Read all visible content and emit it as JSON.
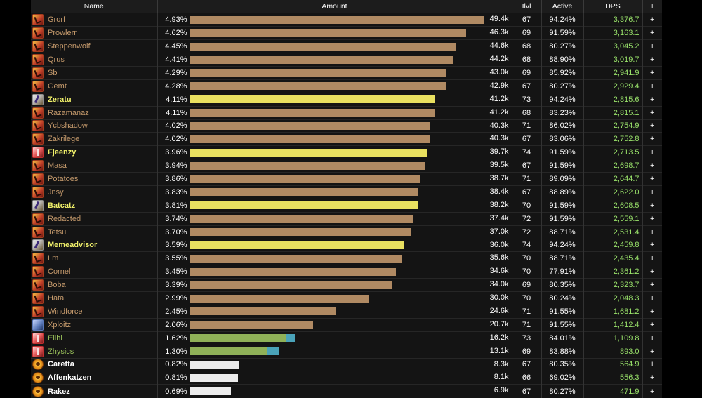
{
  "columns": {
    "name": "Name",
    "amount": "Amount",
    "ilvl": "Ilvl",
    "active": "Active",
    "dps": "DPS",
    "plus": "+"
  },
  "colors": {
    "warrior": "#c59a6c",
    "stormy": "#e8e86a",
    "monk": "#e8e86a",
    "frost": "#c59a6c",
    "hunter": "#9bc35b",
    "pet": "#4aa3b9",
    "fire": "#ffffff"
  },
  "max_amount": 49.4,
  "rows": [
    {
      "name": "Grorf",
      "icon": "warrior",
      "pct": "4.93%",
      "amount": "49.4k",
      "amount_value": 49.4,
      "ilvl": "67",
      "active": "94.24%",
      "dps": "3,376.7",
      "name_color": "#c59a6c",
      "bar_color": "#b08a63",
      "bold": false
    },
    {
      "name": "Prowlerr",
      "icon": "warrior",
      "pct": "4.62%",
      "amount": "46.3k",
      "amount_value": 46.3,
      "ilvl": "69",
      "active": "91.59%",
      "dps": "3,163.1",
      "name_color": "#c59a6c",
      "bar_color": "#b08a63",
      "bold": false
    },
    {
      "name": "Steppenwolf",
      "icon": "warrior",
      "pct": "4.45%",
      "amount": "44.6k",
      "amount_value": 44.6,
      "ilvl": "68",
      "active": "80.27%",
      "dps": "3,045.2",
      "name_color": "#c59a6c",
      "bar_color": "#b08a63",
      "bold": false
    },
    {
      "name": "Qrus",
      "icon": "warrior",
      "pct": "4.41%",
      "amount": "44.2k",
      "amount_value": 44.2,
      "ilvl": "68",
      "active": "88.90%",
      "dps": "3,019.7",
      "name_color": "#c59a6c",
      "bar_color": "#b08a63",
      "bold": false
    },
    {
      "name": "Sb",
      "icon": "warrior",
      "pct": "4.29%",
      "amount": "43.0k",
      "amount_value": 43.0,
      "ilvl": "69",
      "active": "85.92%",
      "dps": "2,941.9",
      "name_color": "#c59a6c",
      "bar_color": "#b08a63",
      "bold": false
    },
    {
      "name": "Gemt",
      "icon": "warrior",
      "pct": "4.28%",
      "amount": "42.9k",
      "amount_value": 42.9,
      "ilvl": "67",
      "active": "80.27%",
      "dps": "2,929.4",
      "name_color": "#c59a6c",
      "bar_color": "#b08a63",
      "bold": false
    },
    {
      "name": "Zeratu",
      "icon": "stormy",
      "pct": "4.11%",
      "amount": "41.2k",
      "amount_value": 41.2,
      "ilvl": "73",
      "active": "94.24%",
      "dps": "2,815.6",
      "name_color": "#f0f06a",
      "bar_color": "#e8e060",
      "bold": true
    },
    {
      "name": "Razamanaz",
      "icon": "warrior",
      "pct": "4.11%",
      "amount": "41.2k",
      "amount_value": 41.2,
      "ilvl": "68",
      "active": "83.23%",
      "dps": "2,815.1",
      "name_color": "#c59a6c",
      "bar_color": "#b08a63",
      "bold": false
    },
    {
      "name": "Ycbshadow",
      "icon": "warrior",
      "pct": "4.02%",
      "amount": "40.3k",
      "amount_value": 40.3,
      "ilvl": "71",
      "active": "86.02%",
      "dps": "2,754.9",
      "name_color": "#c59a6c",
      "bar_color": "#b08a63",
      "bold": false
    },
    {
      "name": "Zakrilege",
      "icon": "warrior",
      "pct": "4.02%",
      "amount": "40.3k",
      "amount_value": 40.3,
      "ilvl": "67",
      "active": "83.06%",
      "dps": "2,752.8",
      "name_color": "#c59a6c",
      "bar_color": "#b08a63",
      "bold": false
    },
    {
      "name": "Fjeenzy",
      "icon": "monk",
      "pct": "3.96%",
      "amount": "39.7k",
      "amount_value": 39.7,
      "ilvl": "74",
      "active": "91.59%",
      "dps": "2,713.5",
      "name_color": "#f0f06a",
      "bar_color": "#e8e060",
      "bold": true
    },
    {
      "name": "Masa",
      "icon": "warrior",
      "pct": "3.94%",
      "amount": "39.5k",
      "amount_value": 39.5,
      "ilvl": "67",
      "active": "91.59%",
      "dps": "2,698.7",
      "name_color": "#c59a6c",
      "bar_color": "#b08a63",
      "bold": false
    },
    {
      "name": "Potatoes",
      "icon": "warrior",
      "pct": "3.86%",
      "amount": "38.7k",
      "amount_value": 38.7,
      "ilvl": "71",
      "active": "89.09%",
      "dps": "2,644.7",
      "name_color": "#c59a6c",
      "bar_color": "#b08a63",
      "bold": false
    },
    {
      "name": "Jnsy",
      "icon": "warrior",
      "pct": "3.83%",
      "amount": "38.4k",
      "amount_value": 38.4,
      "ilvl": "67",
      "active": "88.89%",
      "dps": "2,622.0",
      "name_color": "#c59a6c",
      "bar_color": "#b08a63",
      "bold": false
    },
    {
      "name": "Batcatz",
      "icon": "stormy",
      "pct": "3.81%",
      "amount": "38.2k",
      "amount_value": 38.2,
      "ilvl": "70",
      "active": "91.59%",
      "dps": "2,608.5",
      "name_color": "#f0f06a",
      "bar_color": "#e8e060",
      "bold": true
    },
    {
      "name": "Redacted",
      "icon": "warrior",
      "pct": "3.74%",
      "amount": "37.4k",
      "amount_value": 37.4,
      "ilvl": "72",
      "active": "91.59%",
      "dps": "2,559.1",
      "name_color": "#c59a6c",
      "bar_color": "#b08a63",
      "bold": false
    },
    {
      "name": "Tetsu",
      "icon": "warrior",
      "pct": "3.70%",
      "amount": "37.0k",
      "amount_value": 37.0,
      "ilvl": "72",
      "active": "88.71%",
      "dps": "2,531.4",
      "name_color": "#c59a6c",
      "bar_color": "#b08a63",
      "bold": false
    },
    {
      "name": "Memeadvisor",
      "icon": "stormy",
      "pct": "3.59%",
      "amount": "36.0k",
      "amount_value": 36.0,
      "ilvl": "74",
      "active": "94.24%",
      "dps": "2,459.8",
      "name_color": "#f0f06a",
      "bar_color": "#e8e060",
      "bold": true
    },
    {
      "name": "Lm",
      "icon": "warrior",
      "pct": "3.55%",
      "amount": "35.6k",
      "amount_value": 35.6,
      "ilvl": "70",
      "active": "88.71%",
      "dps": "2,435.4",
      "name_color": "#c59a6c",
      "bar_color": "#b08a63",
      "bold": false
    },
    {
      "name": "Cornel",
      "icon": "warrior",
      "pct": "3.45%",
      "amount": "34.6k",
      "amount_value": 34.6,
      "ilvl": "70",
      "active": "77.91%",
      "dps": "2,361.2",
      "name_color": "#c59a6c",
      "bar_color": "#b08a63",
      "bold": false
    },
    {
      "name": "Boba",
      "icon": "warrior",
      "pct": "3.39%",
      "amount": "34.0k",
      "amount_value": 34.0,
      "ilvl": "69",
      "active": "80.35%",
      "dps": "2,323.7",
      "name_color": "#c59a6c",
      "bar_color": "#b08a63",
      "bold": false
    },
    {
      "name": "Hata",
      "icon": "warrior",
      "pct": "2.99%",
      "amount": "30.0k",
      "amount_value": 30.0,
      "ilvl": "70",
      "active": "80.24%",
      "dps": "2,048.3",
      "name_color": "#c59a6c",
      "bar_color": "#b08a63",
      "bold": false
    },
    {
      "name": "Windforce",
      "icon": "warrior",
      "pct": "2.45%",
      "amount": "24.6k",
      "amount_value": 24.6,
      "ilvl": "71",
      "active": "91.55%",
      "dps": "1,681.2",
      "name_color": "#c59a6c",
      "bar_color": "#b08a63",
      "bold": false
    },
    {
      "name": "Xploitz",
      "icon": "frost",
      "pct": "2.06%",
      "amount": "20.7k",
      "amount_value": 20.7,
      "ilvl": "71",
      "active": "91.55%",
      "dps": "1,412.4",
      "name_color": "#c59a6c",
      "bar_color": "#b08a63",
      "bold": false
    },
    {
      "name": "Ellhl",
      "icon": "monk",
      "pct": "1.62%",
      "amount": "16.2k",
      "amount_value": 16.2,
      "ilvl": "73",
      "active": "84.01%",
      "dps": "1,109.8",
      "name_color": "#9bc35b",
      "bar_color": "#8fb158",
      "bar2_value": 1.4,
      "bar2_color": "#4aa3b9",
      "bold": false
    },
    {
      "name": "Zhysics",
      "icon": "monk",
      "pct": "1.30%",
      "amount": "13.1k",
      "amount_value": 13.1,
      "ilvl": "69",
      "active": "83.88%",
      "dps": "893.0",
      "name_color": "#9bc35b",
      "bar_color": "#8fb158",
      "bar2_value": 1.9,
      "bar2_color": "#4aa3b9",
      "bold": false
    },
    {
      "name": "Caretta",
      "icon": "fire",
      "pct": "0.82%",
      "amount": "8.3k",
      "amount_value": 8.3,
      "ilvl": "67",
      "active": "80.35%",
      "dps": "564.9",
      "name_color": "#ffffff",
      "bar_color": "#ececec",
      "bold": true
    },
    {
      "name": "Affenkatzen",
      "icon": "fire",
      "pct": "0.81%",
      "amount": "8.1k",
      "amount_value": 8.1,
      "ilvl": "66",
      "active": "69.02%",
      "dps": "556.3",
      "name_color": "#ffffff",
      "bar_color": "#ececec",
      "bold": true
    },
    {
      "name": "Rakez",
      "icon": "fire",
      "pct": "0.69%",
      "amount": "6.9k",
      "amount_value": 6.9,
      "ilvl": "67",
      "active": "80.27%",
      "dps": "471.9",
      "name_color": "#ffffff",
      "bar_color": "#ececec",
      "bold": true
    }
  ]
}
